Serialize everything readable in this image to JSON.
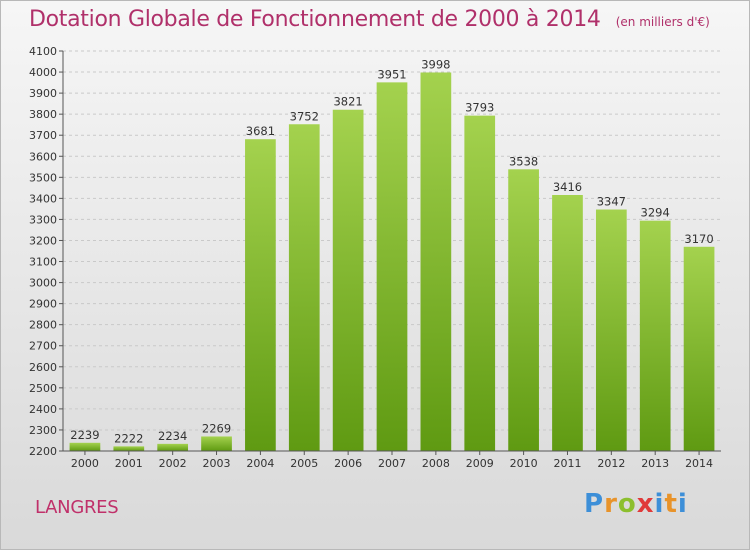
{
  "chart_data": {
    "type": "bar",
    "title": "Dotation Globale de Fonctionnement de 2000 à 2014",
    "subtitle": "(en milliers d'€)",
    "categories": [
      "2000",
      "2001",
      "2002",
      "2003",
      "2004",
      "2005",
      "2006",
      "2007",
      "2008",
      "2009",
      "2010",
      "2011",
      "2012",
      "2013",
      "2014"
    ],
    "values": [
      2239,
      2222,
      2234,
      2269,
      3681,
      3752,
      3821,
      3951,
      3998,
      3793,
      3538,
      3416,
      3347,
      3294,
      3170
    ],
    "ylim": [
      2200,
      4100
    ],
    "yticks": [
      2200,
      2300,
      2400,
      2500,
      2600,
      2700,
      2800,
      2900,
      3000,
      3100,
      3200,
      3300,
      3400,
      3500,
      3600,
      3700,
      3800,
      3900,
      4000,
      4100
    ],
    "xlabel": "",
    "ylabel": "",
    "grid": true,
    "bar_color_top": "#a4d24e",
    "bar_color_bottom": "#5f9a12"
  },
  "footer": {
    "city": "LANGRES",
    "brand": [
      "P",
      "r",
      "o",
      "x",
      "i",
      "t",
      "i"
    ]
  }
}
